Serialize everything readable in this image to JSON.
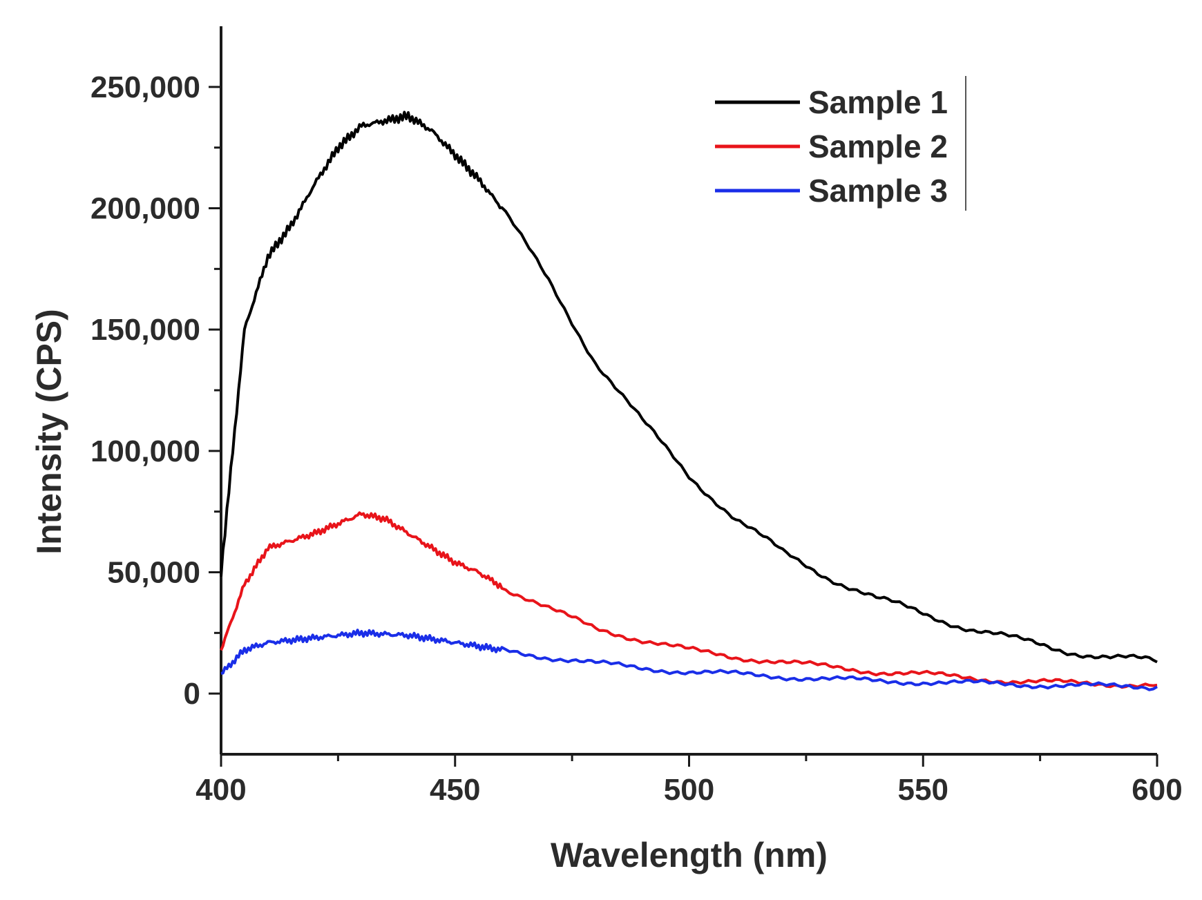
{
  "chart_data": {
    "type": "line",
    "title": "",
    "xlabel": "Wavelength (nm)",
    "ylabel": "Intensity (CPS)",
    "xlim": [
      400,
      600
    ],
    "ylim": [
      -25000,
      275000
    ],
    "x_ticks": [
      400,
      450,
      500,
      550,
      600
    ],
    "x_tick_labels": [
      "400",
      "450",
      "500",
      "550",
      "600"
    ],
    "y_ticks": [
      0,
      50000,
      100000,
      150000,
      200000,
      250000
    ],
    "y_tick_labels": [
      "0",
      "50,000",
      "100,000",
      "150,000",
      "200,000",
      "250,000"
    ],
    "grid": false,
    "legend": "top-right",
    "x": [
      400,
      405,
      410,
      415,
      420,
      425,
      430,
      435,
      440,
      445,
      450,
      455,
      460,
      470,
      480,
      490,
      500,
      510,
      520,
      530,
      540,
      550,
      560,
      570,
      580,
      590,
      600
    ],
    "series": [
      {
        "name": "Sample 1",
        "color": "#000000",
        "values": [
          50000,
          150000,
          180000,
          193000,
          210000,
          225000,
          234000,
          236000,
          238000,
          232000,
          222000,
          212000,
          200000,
          170000,
          137000,
          112000,
          90000,
          72000,
          58000,
          48000,
          39000,
          33000,
          27000,
          22000,
          18000,
          15000,
          13000
        ]
      },
      {
        "name": "Sample 2",
        "color": "#e8141a",
        "values": [
          18000,
          45000,
          60000,
          63000,
          66000,
          70000,
          74000,
          72000,
          66000,
          60000,
          54000,
          50000,
          44000,
          35000,
          27000,
          22000,
          18000,
          15000,
          13000,
          11000,
          9000,
          8000,
          6500,
          5000,
          4500,
          4000,
          3500
        ]
      },
      {
        "name": "Sample 3",
        "color": "#1a2ee8",
        "values": [
          8000,
          18000,
          21000,
          22000,
          23000,
          24000,
          25000,
          24500,
          24000,
          22500,
          21000,
          19500,
          18000,
          15000,
          12500,
          10500,
          9000,
          8000,
          7000,
          6000,
          5200,
          4800,
          4300,
          3800,
          3400,
          3000,
          2800
        ]
      }
    ]
  }
}
